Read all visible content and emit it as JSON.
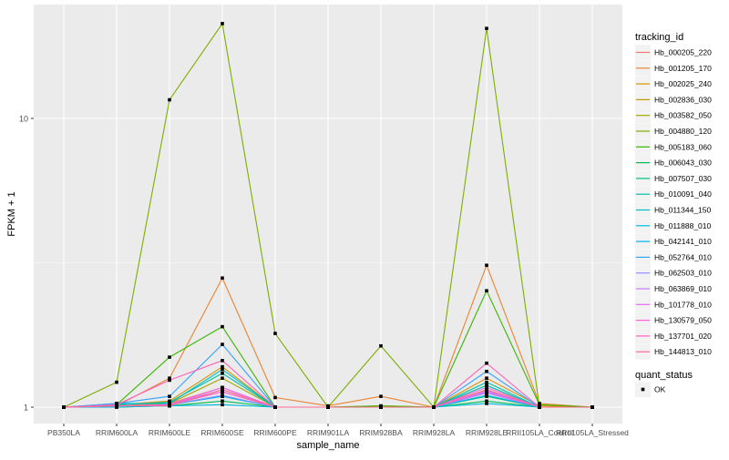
{
  "chart_data": {
    "type": "line",
    "title": "",
    "xlabel": "sample_name",
    "ylabel": "FPKM + 1",
    "yscale": "log10",
    "ylim": [
      0.88,
      26
    ],
    "y_ticks": [
      1,
      10
    ],
    "y_tick_labels": [
      "1",
      "10"
    ],
    "grid": true,
    "legend_placement": "right",
    "categories": [
      "PB350LA",
      "RRIM600LA",
      "RRIM600LE",
      "RRIM600SE",
      "RRIM600PE",
      "RRIM901LA",
      "RRIM928BA",
      "RRIM928LA",
      "RRIM928LE",
      "RRII105LA_Control",
      "RRII105LA_Stressed"
    ],
    "legend_title": "tracking_id",
    "series": [
      {
        "name": "Hb_000205_220",
        "color": "#F8766D",
        "values": [
          1,
          1.01,
          1.03,
          1.17,
          1,
          1,
          1,
          1,
          1.12,
          1,
          1
        ]
      },
      {
        "name": "Hb_001205_170",
        "color": "#EA8331",
        "values": [
          1,
          1.01,
          1.26,
          2.8,
          1.08,
          1.01,
          1.09,
          1,
          3.1,
          1.03,
          1
        ]
      },
      {
        "name": "Hb_002025_240",
        "color": "#D89000",
        "values": [
          1,
          1.02,
          1.05,
          1.38,
          1,
          1,
          1.01,
          1,
          1.26,
          1.01,
          1
        ]
      },
      {
        "name": "Hb_002836_030",
        "color": "#C09B00",
        "values": [
          1,
          1.01,
          1.02,
          1.13,
          1,
          1,
          1,
          1,
          1.15,
          1,
          1
        ]
      },
      {
        "name": "Hb_003582_050",
        "color": "#A3A500",
        "values": [
          1,
          1.01,
          1.03,
          1.26,
          1,
          1,
          1,
          1,
          1.19,
          1,
          1
        ]
      },
      {
        "name": "Hb_004880_120",
        "color": "#7CAE00",
        "values": [
          1,
          1.22,
          11.6,
          21.3,
          1.8,
          1,
          1.63,
          1,
          20.5,
          1,
          1
        ]
      },
      {
        "name": "Hb_005183_060",
        "color": "#39B600",
        "values": [
          1,
          1.02,
          1.49,
          1.9,
          1,
          1,
          1.01,
          1,
          2.53,
          1.02,
          1
        ]
      },
      {
        "name": "Hb_006043_030",
        "color": "#00BB4E",
        "values": [
          1,
          1,
          1.01,
          1.05,
          1,
          1,
          1,
          1,
          1.05,
          1,
          1
        ]
      },
      {
        "name": "Hb_007507_030",
        "color": "#00BF7D",
        "values": [
          1,
          1.01,
          1.02,
          1.09,
          1,
          1,
          1,
          1,
          1.09,
          1,
          1
        ]
      },
      {
        "name": "Hb_010091_040",
        "color": "#00C1A3",
        "values": [
          1,
          1.02,
          1.04,
          1.31,
          1,
          1,
          1,
          1,
          1.22,
          1,
          1
        ]
      },
      {
        "name": "Hb_011344_150",
        "color": "#00BFC4",
        "values": [
          1,
          1.03,
          1.03,
          1.35,
          1,
          1,
          1,
          1,
          1.19,
          1,
          1
        ]
      },
      {
        "name": "Hb_011888_010",
        "color": "#00BAE0",
        "values": [
          1,
          1,
          1.01,
          1.02,
          1,
          1,
          1,
          1,
          1.03,
          1,
          1
        ]
      },
      {
        "name": "Hb_042141_010",
        "color": "#00B0F6",
        "values": [
          1,
          1.01,
          1.02,
          1.09,
          1,
          1,
          1,
          1,
          1.1,
          1,
          1
        ]
      },
      {
        "name": "Hb_052764_010",
        "color": "#35A2FF",
        "values": [
          1,
          1.03,
          1.09,
          1.65,
          1,
          1,
          1,
          1,
          1.33,
          1,
          1
        ]
      },
      {
        "name": "Hb_062503_010",
        "color": "#9590FF",
        "values": [
          1,
          1.01,
          1.02,
          1.1,
          1,
          1,
          1,
          1,
          1.12,
          1,
          1
        ]
      },
      {
        "name": "Hb_063869_010",
        "color": "#C77CFF",
        "values": [
          1,
          1.01,
          1.02,
          1.15,
          1,
          1,
          1,
          1,
          1.14,
          1,
          1
        ]
      },
      {
        "name": "Hb_101778_010",
        "color": "#E76BF3",
        "values": [
          1,
          1.01,
          1.02,
          1.17,
          1,
          1,
          1,
          1,
          1.13,
          1,
          1
        ]
      },
      {
        "name": "Hb_130579_050",
        "color": "#FA62DB",
        "values": [
          1,
          1.01,
          1.02,
          1.13,
          1,
          1,
          1,
          1,
          1.17,
          1,
          1
        ]
      },
      {
        "name": "Hb_137701_020",
        "color": "#FF62BC",
        "values": [
          1,
          1.02,
          1.24,
          1.45,
          1,
          1,
          1,
          1,
          1.42,
          1,
          1
        ]
      },
      {
        "name": "Hb_144813_010",
        "color": "#FF6C91",
        "values": [
          1,
          1.01,
          1.01,
          1.15,
          1,
          1,
          1,
          1,
          1.15,
          1,
          1
        ]
      }
    ],
    "point_legend_title": "quant_status",
    "point_legend_items": [
      "OK"
    ],
    "panel_color": "#EBEBEB",
    "grid_color": "#FFFFFF"
  }
}
